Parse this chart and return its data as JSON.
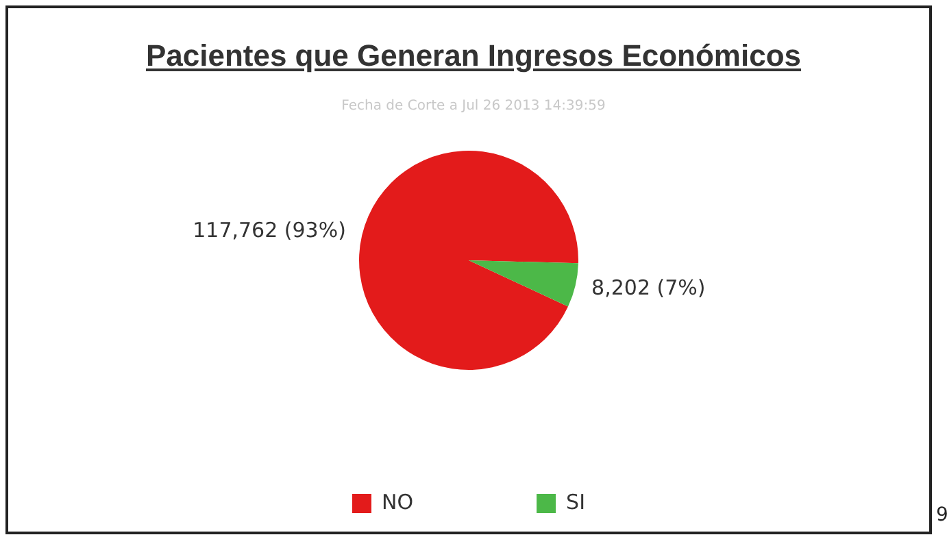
{
  "chart_data": {
    "type": "pie",
    "title": "Pacientes que Generan Ingresos Económicos",
    "subtitle": "Fecha de Corte a Jul 26 2013 14:39:59",
    "categories": [
      "NO",
      "SI"
    ],
    "values": [
      117762,
      8202
    ],
    "colors": [
      "#e31b1b",
      "#4cb848"
    ],
    "value_labels": [
      "117,762 (93%)",
      "8,202 (7%)"
    ],
    "legend": "bottom",
    "annotations": [
      "9"
    ]
  }
}
